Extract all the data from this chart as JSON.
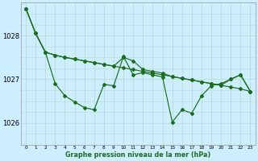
{
  "title": "Graphe pression niveau de la mer (hPa)",
  "bg_color": "#cceeff",
  "grid_color": "#b8ddd0",
  "line_color": "#1a6e1a",
  "xlim": [
    -0.5,
    23.5
  ],
  "ylim": [
    1025.5,
    1028.75
  ],
  "yticks": [
    1026,
    1027,
    1028
  ],
  "xticks": [
    0,
    1,
    2,
    3,
    4,
    5,
    6,
    7,
    8,
    9,
    10,
    11,
    12,
    13,
    14,
    15,
    16,
    17,
    18,
    19,
    20,
    21,
    22,
    23
  ],
  "series1": [
    1028.62,
    1028.05,
    1027.62,
    1027.55,
    1027.5,
    1027.46,
    1027.42,
    1027.38,
    1027.34,
    1027.3,
    1027.26,
    1027.22,
    1027.18,
    1027.14,
    1027.1,
    1027.06,
    1027.02,
    1026.98,
    1026.94,
    1026.9,
    1026.86,
    1026.82,
    1026.78,
    1026.72
  ],
  "series2": [
    1028.62,
    1028.05,
    1027.62,
    1027.55,
    1027.5,
    1027.46,
    1027.42,
    1027.38,
    1027.34,
    1027.3,
    1027.5,
    1027.42,
    1027.22,
    1027.18,
    1027.14,
    1027.06,
    1027.02,
    1026.98,
    1026.94,
    1026.9,
    1026.86,
    1027.0,
    1027.1,
    1026.72
  ],
  "series3": [
    1028.62,
    1028.05,
    1027.62,
    1026.9,
    1026.62,
    1026.48,
    1026.35,
    1026.3,
    1026.88,
    1026.85,
    1027.52,
    1027.1,
    1027.15,
    1027.1,
    1027.05,
    1026.02,
    1026.3,
    1026.22,
    1026.62,
    1026.85,
    1026.9,
    1027.0,
    1027.1,
    1026.72
  ]
}
